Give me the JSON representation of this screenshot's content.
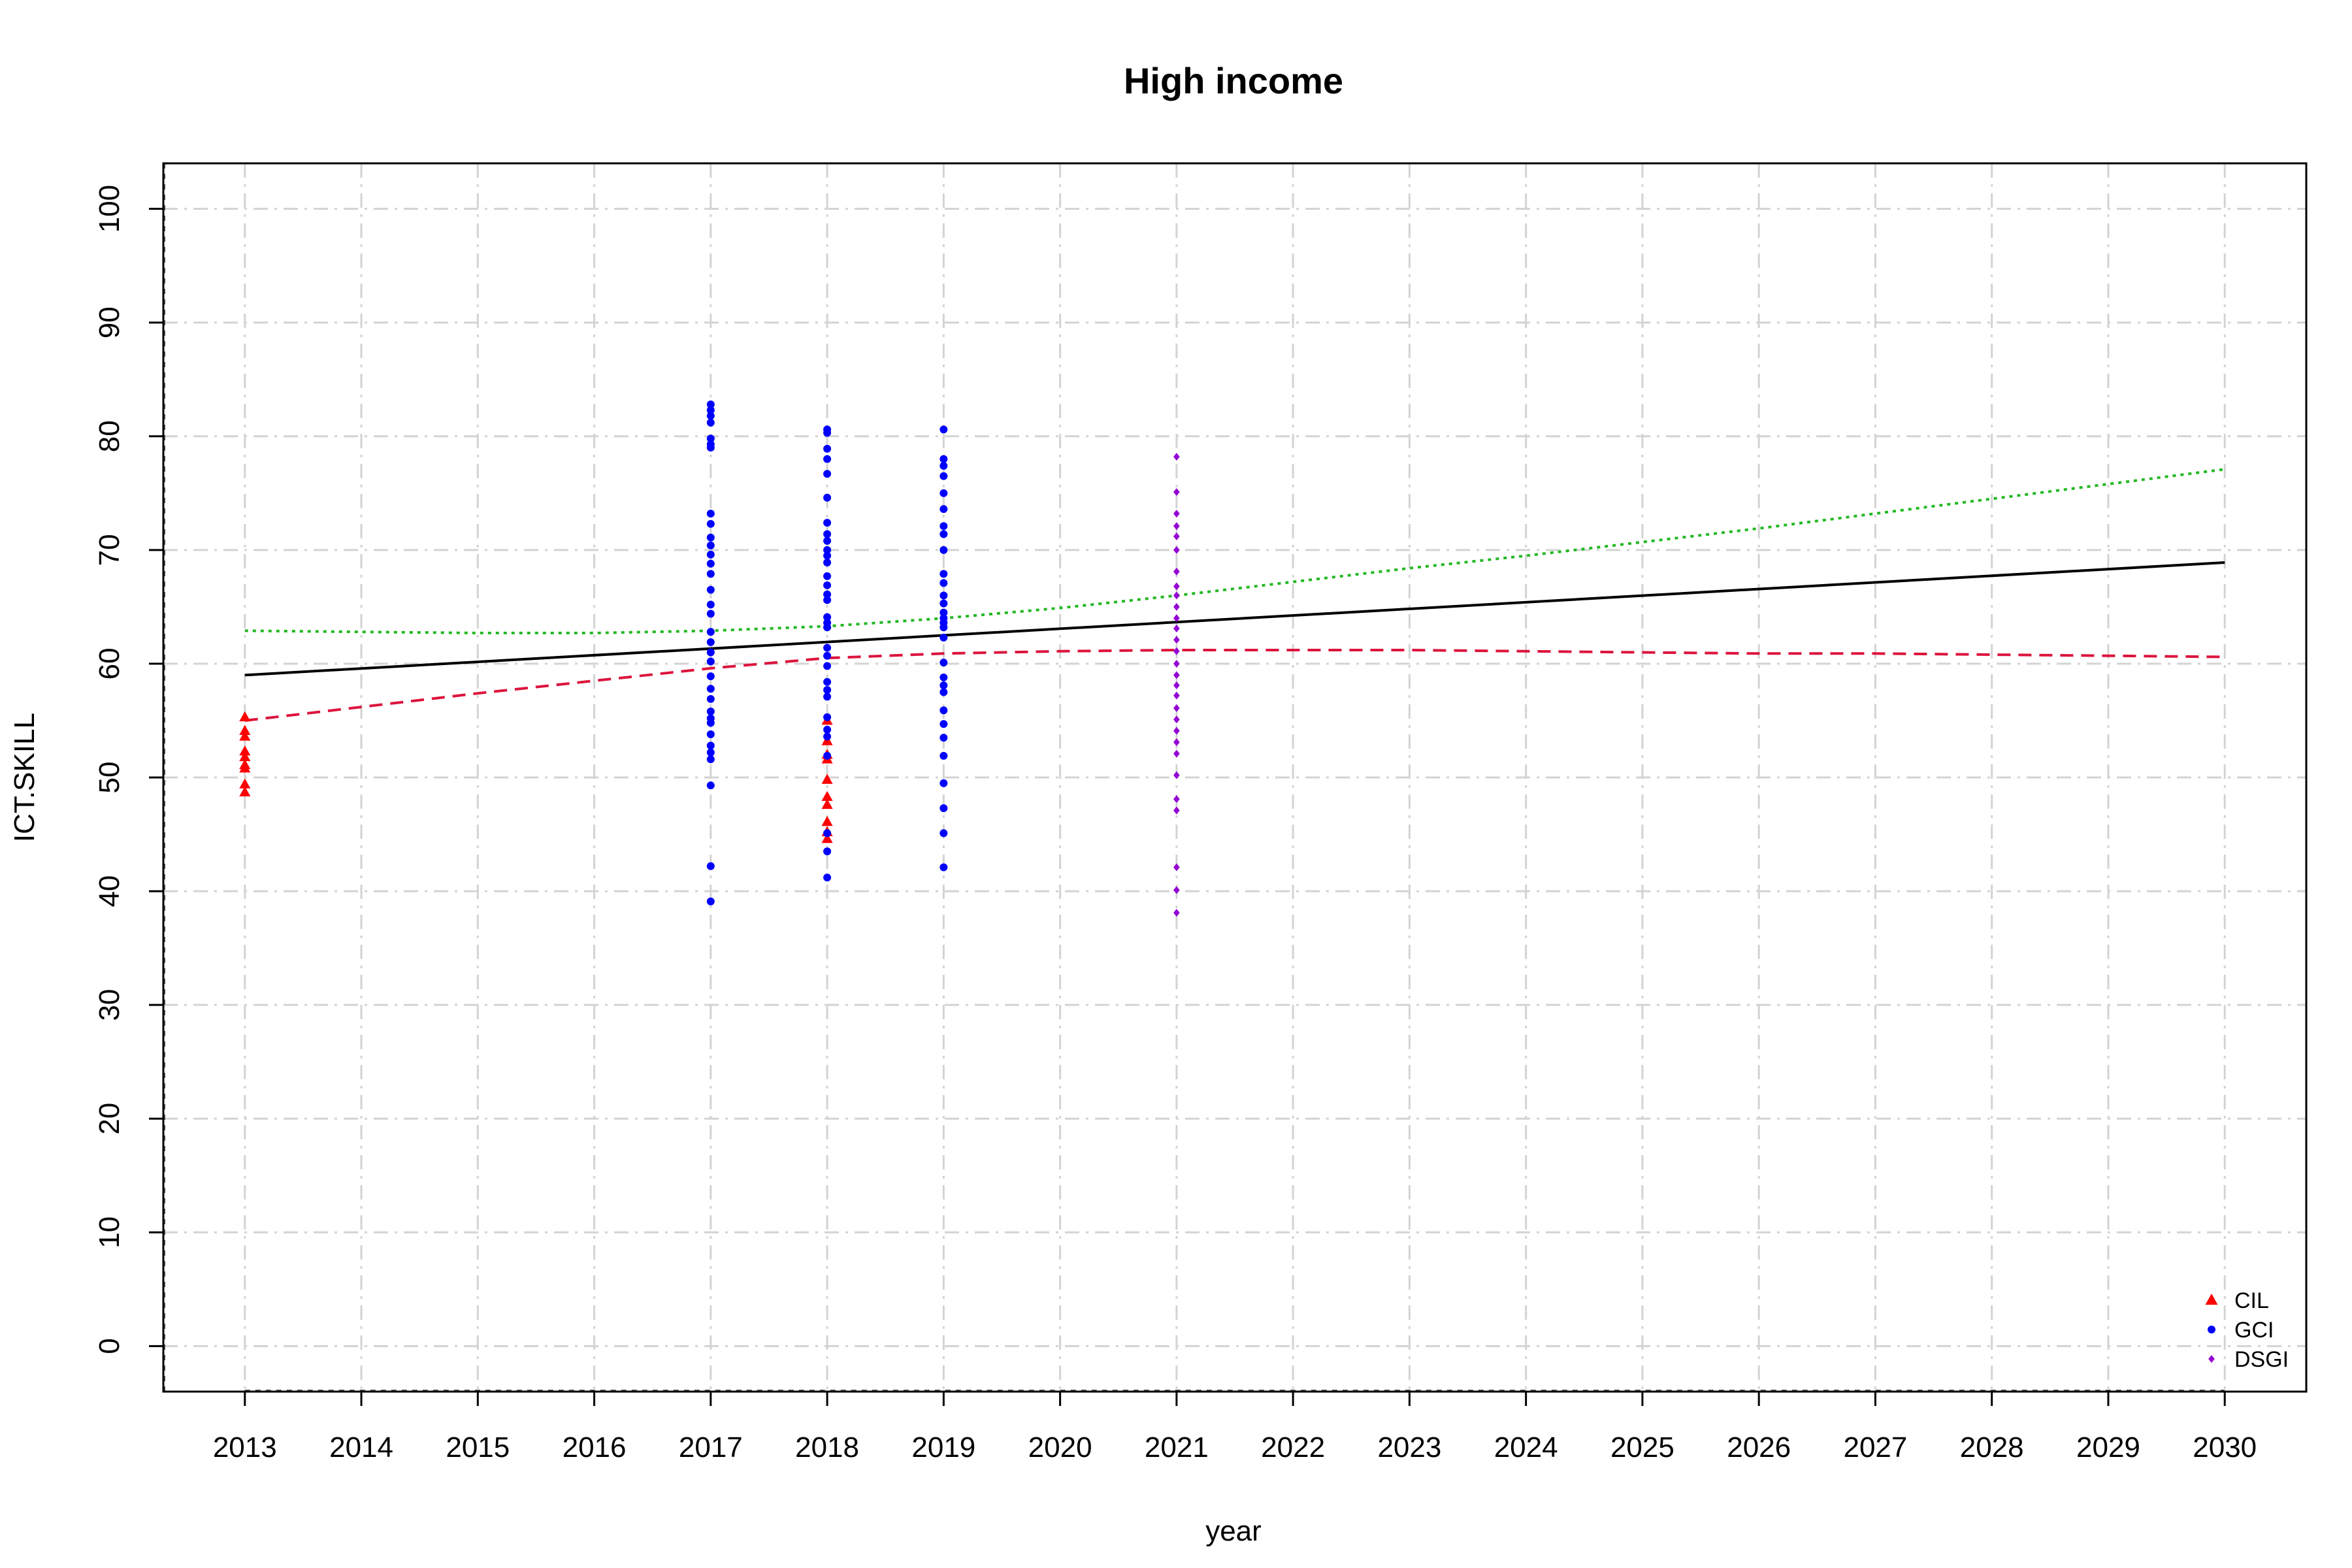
{
  "chart_data": {
    "type": "scatter",
    "title": "High income",
    "xlabel": "year",
    "ylabel": "ICT.SKILL",
    "xlim": [
      2012.3,
      2030.7
    ],
    "ylim": [
      -4,
      104
    ],
    "x_ticks": [
      2013,
      2014,
      2015,
      2016,
      2017,
      2018,
      2019,
      2020,
      2021,
      2022,
      2023,
      2024,
      2025,
      2026,
      2027,
      2028,
      2029,
      2030
    ],
    "y_ticks": [
      0,
      10,
      20,
      30,
      40,
      50,
      60,
      70,
      80,
      90,
      100
    ],
    "grid": true,
    "legend_position": "bottom-right",
    "colors": {
      "CIL": "#ff0000",
      "GCI": "#0000ff",
      "DSGI": "#9400d3",
      "linear": "#000000",
      "trend_dashed": "#dc143c",
      "trend_dotted": "#22b822",
      "grid": "#d3d3d3"
    },
    "series": [
      {
        "name": "CIL",
        "marker": "triangle",
        "points": [
          [
            2013,
            55.3
          ],
          [
            2013,
            54.1
          ],
          [
            2013,
            53.6
          ],
          [
            2013,
            52.3
          ],
          [
            2013,
            51.8
          ],
          [
            2013,
            51.1
          ],
          [
            2013,
            50.8
          ],
          [
            2013,
            49.4
          ],
          [
            2013,
            48.7
          ],
          [
            2018,
            55.0
          ],
          [
            2018,
            53.2
          ],
          [
            2018,
            52.0
          ],
          [
            2018,
            51.6
          ],
          [
            2018,
            49.8
          ],
          [
            2018,
            48.3
          ],
          [
            2018,
            47.6
          ],
          [
            2018,
            46.1
          ],
          [
            2018,
            45.2
          ],
          [
            2018,
            44.6
          ]
        ]
      },
      {
        "name": "GCI",
        "marker": "circle",
        "points": [
          [
            2017,
            82.8
          ],
          [
            2017,
            82.3
          ],
          [
            2017,
            81.8
          ],
          [
            2017,
            81.2
          ],
          [
            2017,
            79.8
          ],
          [
            2017,
            79.3
          ],
          [
            2017,
            79.0
          ],
          [
            2017,
            73.2
          ],
          [
            2017,
            72.3
          ],
          [
            2017,
            71.1
          ],
          [
            2017,
            70.4
          ],
          [
            2017,
            69.6
          ],
          [
            2017,
            68.8
          ],
          [
            2017,
            67.9
          ],
          [
            2017,
            66.5
          ],
          [
            2017,
            65.2
          ],
          [
            2017,
            64.4
          ],
          [
            2017,
            62.8
          ],
          [
            2017,
            61.9
          ],
          [
            2017,
            61.0
          ],
          [
            2017,
            60.2
          ],
          [
            2017,
            58.9
          ],
          [
            2017,
            57.8
          ],
          [
            2017,
            56.9
          ],
          [
            2017,
            55.8
          ],
          [
            2017,
            55.2
          ],
          [
            2017,
            54.8
          ],
          [
            2017,
            53.8
          ],
          [
            2017,
            52.8
          ],
          [
            2017,
            52.2
          ],
          [
            2017,
            51.6
          ],
          [
            2017,
            49.3
          ],
          [
            2017,
            42.2
          ],
          [
            2017,
            39.1
          ],
          [
            2018,
            80.6
          ],
          [
            2018,
            80.3
          ],
          [
            2018,
            78.9
          ],
          [
            2018,
            78.0
          ],
          [
            2018,
            76.7
          ],
          [
            2018,
            74.6
          ],
          [
            2018,
            72.4
          ],
          [
            2018,
            71.4
          ],
          [
            2018,
            70.8
          ],
          [
            2018,
            70.0
          ],
          [
            2018,
            69.5
          ],
          [
            2018,
            68.9
          ],
          [
            2018,
            67.7
          ],
          [
            2018,
            66.9
          ],
          [
            2018,
            66.1
          ],
          [
            2018,
            65.6
          ],
          [
            2018,
            64.1
          ],
          [
            2018,
            63.6
          ],
          [
            2018,
            63.2
          ],
          [
            2018,
            61.4
          ],
          [
            2018,
            60.7
          ],
          [
            2018,
            59.8
          ],
          [
            2018,
            58.4
          ],
          [
            2018,
            57.7
          ],
          [
            2018,
            57.1
          ],
          [
            2018,
            55.3
          ],
          [
            2018,
            54.2
          ],
          [
            2018,
            53.6
          ],
          [
            2018,
            51.9
          ],
          [
            2018,
            45.1
          ],
          [
            2018,
            43.5
          ],
          [
            2018,
            41.2
          ],
          [
            2019,
            80.6
          ],
          [
            2019,
            78.0
          ],
          [
            2019,
            77.4
          ],
          [
            2019,
            76.5
          ],
          [
            2019,
            75.0
          ],
          [
            2019,
            73.6
          ],
          [
            2019,
            72.1
          ],
          [
            2019,
            71.4
          ],
          [
            2019,
            70.0
          ],
          [
            2019,
            67.9
          ],
          [
            2019,
            67.1
          ],
          [
            2019,
            66.0
          ],
          [
            2019,
            65.3
          ],
          [
            2019,
            64.5
          ],
          [
            2019,
            64.0
          ],
          [
            2019,
            63.6
          ],
          [
            2019,
            63.2
          ],
          [
            2019,
            62.3
          ],
          [
            2019,
            60.1
          ],
          [
            2019,
            58.8
          ],
          [
            2019,
            58.1
          ],
          [
            2019,
            57.5
          ],
          [
            2019,
            55.9
          ],
          [
            2019,
            54.7
          ],
          [
            2019,
            53.5
          ],
          [
            2019,
            51.9
          ],
          [
            2019,
            49.5
          ],
          [
            2019,
            47.3
          ],
          [
            2019,
            45.1
          ],
          [
            2019,
            42.1
          ]
        ]
      },
      {
        "name": "DSGI",
        "marker": "diamond",
        "points": [
          [
            2021,
            78.2
          ],
          [
            2021,
            75.1
          ],
          [
            2021,
            73.2
          ],
          [
            2021,
            72.1
          ],
          [
            2021,
            71.2
          ],
          [
            2021,
            70.0
          ],
          [
            2021,
            68.1
          ],
          [
            2021,
            66.8
          ],
          [
            2021,
            66.0
          ],
          [
            2021,
            65.0
          ],
          [
            2021,
            64.0
          ],
          [
            2021,
            63.1
          ],
          [
            2021,
            62.1
          ],
          [
            2021,
            61.1
          ],
          [
            2021,
            60.0
          ],
          [
            2021,
            59.0
          ],
          [
            2021,
            58.1
          ],
          [
            2021,
            57.2
          ],
          [
            2021,
            56.1
          ],
          [
            2021,
            55.1
          ],
          [
            2021,
            54.1
          ],
          [
            2021,
            53.1
          ],
          [
            2021,
            52.1
          ],
          [
            2021,
            50.2
          ],
          [
            2021,
            48.1
          ],
          [
            2021,
            47.1
          ],
          [
            2021,
            42.1
          ],
          [
            2021,
            40.1
          ],
          [
            2021,
            38.1
          ]
        ]
      }
    ],
    "lines": [
      {
        "style": "solid",
        "color": "#000000",
        "x": [
          2013,
          2030
        ],
        "y": [
          59.0,
          68.9
        ]
      },
      {
        "style": "dashed",
        "color": "#dc143c",
        "x": [
          2013,
          2014,
          2015,
          2016,
          2017,
          2018,
          2019,
          2020,
          2021,
          2022,
          2023,
          2024,
          2025,
          2026,
          2027,
          2028,
          2029,
          2030
        ],
        "y": [
          55.0,
          56.2,
          57.4,
          58.5,
          59.6,
          60.5,
          60.9,
          61.1,
          61.2,
          61.2,
          61.2,
          61.1,
          61.0,
          60.9,
          60.9,
          60.8,
          60.7,
          60.6
        ]
      },
      {
        "style": "dotted",
        "color": "#22b822",
        "x": [
          2013,
          2014,
          2015,
          2016,
          2017,
          2018,
          2019,
          2020,
          2021,
          2022,
          2023,
          2024,
          2025,
          2026,
          2027,
          2028,
          2029,
          2030
        ],
        "y": [
          62.9,
          62.8,
          62.7,
          62.7,
          62.9,
          63.3,
          64.0,
          64.9,
          66.0,
          67.2,
          68.4,
          69.5,
          70.7,
          71.9,
          73.2,
          74.5,
          75.8,
          77.1
        ]
      }
    ],
    "legend": [
      {
        "label": "CIL",
        "marker": "triangle",
        "color": "#ff0000"
      },
      {
        "label": "GCI",
        "marker": "circle",
        "color": "#0000ff"
      },
      {
        "label": "DSGI",
        "marker": "diamond",
        "color": "#9400d3"
      }
    ]
  }
}
